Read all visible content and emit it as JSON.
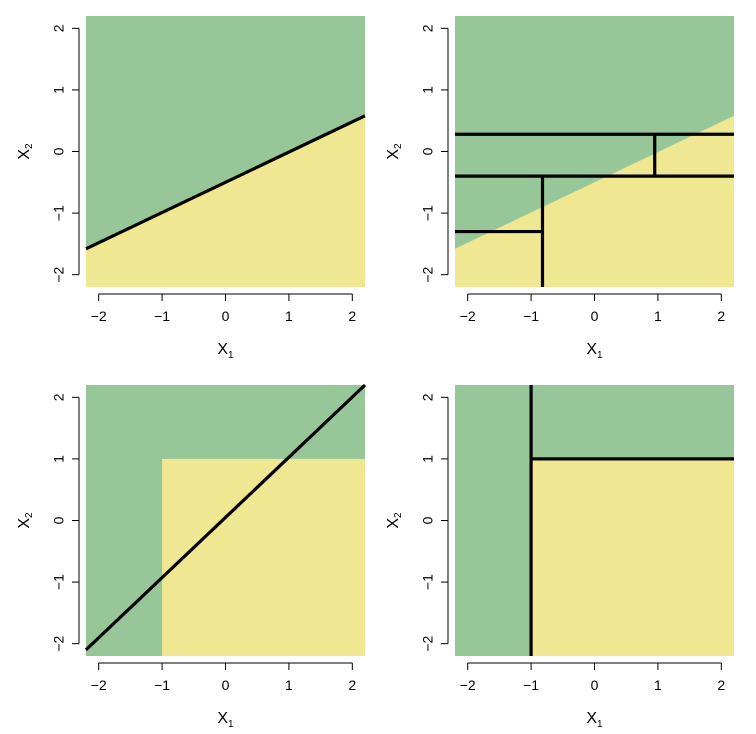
{
  "colors": {
    "green_region": "#97c699",
    "yellow_region": "#f0e793",
    "boundary": "#000000"
  },
  "chart_data": [
    {
      "type": "region",
      "xlabel": "X",
      "xlabel_sub": "1",
      "ylabel": "X",
      "ylabel_sub": "2",
      "xlim": [
        -2.2,
        2.2
      ],
      "ylim": [
        -2.2,
        2.2
      ],
      "xticks": [
        "−2",
        "−1",
        "0",
        "1",
        "2"
      ],
      "yticks": [
        "−2",
        "−1",
        "0",
        "1",
        "2"
      ],
      "background_class": "green",
      "fill_polygons": [
        {
          "class": "yellow",
          "points": [
            [
              -2.2,
              -2.2
            ],
            [
              2.2,
              -2.2
            ],
            [
              2.2,
              0.58
            ],
            [
              -2.2,
              -1.58
            ]
          ]
        }
      ],
      "boundary_segments": [
        [
          [
            -2.2,
            -1.58
          ],
          [
            2.2,
            0.58
          ]
        ]
      ]
    },
    {
      "type": "region",
      "xlabel": "X",
      "xlabel_sub": "1",
      "ylabel": "X",
      "ylabel_sub": "2",
      "xlim": [
        -2.2,
        2.2
      ],
      "ylim": [
        -2.2,
        2.2
      ],
      "xticks": [
        "−2",
        "−1",
        "0",
        "1",
        "2"
      ],
      "yticks": [
        "−2",
        "−1",
        "0",
        "1",
        "2"
      ],
      "background_class": "green",
      "fill_polygons": [
        {
          "class": "yellow",
          "points": [
            [
              -2.2,
              -2.2
            ],
            [
              2.2,
              -2.2
            ],
            [
              2.2,
              0.58
            ],
            [
              -2.2,
              -1.58
            ]
          ]
        }
      ],
      "boundary_segments": [
        [
          [
            -2.2,
            0.28
          ],
          [
            2.2,
            0.28
          ]
        ],
        [
          [
            -2.2,
            -0.4
          ],
          [
            2.2,
            -0.4
          ]
        ],
        [
          [
            0.95,
            -0.4
          ],
          [
            0.95,
            0.28
          ]
        ],
        [
          [
            -0.82,
            -2.2
          ],
          [
            -0.82,
            -0.4
          ]
        ],
        [
          [
            -2.2,
            -1.3
          ],
          [
            -0.82,
            -1.3
          ]
        ]
      ]
    },
    {
      "type": "region",
      "xlabel": "X",
      "xlabel_sub": "1",
      "ylabel": "X",
      "ylabel_sub": "2",
      "xlim": [
        -2.2,
        2.2
      ],
      "ylim": [
        -2.2,
        2.2
      ],
      "xticks": [
        "−2",
        "−1",
        "0",
        "1",
        "2"
      ],
      "yticks": [
        "−2",
        "−1",
        "0",
        "1",
        "2"
      ],
      "background_class": "green",
      "fill_polygons": [
        {
          "class": "yellow",
          "points": [
            [
              -1,
              -2.2
            ],
            [
              2.2,
              -2.2
            ],
            [
              2.2,
              1
            ],
            [
              -1,
              1
            ]
          ]
        }
      ],
      "boundary_segments": [
        [
          [
            -2.2,
            -2.1
          ],
          [
            2.2,
            2.2
          ]
        ]
      ]
    },
    {
      "type": "region",
      "xlabel": "X",
      "xlabel_sub": "1",
      "ylabel": "X",
      "ylabel_sub": "2",
      "xlim": [
        -2.2,
        2.2
      ],
      "ylim": [
        -2.2,
        2.2
      ],
      "xticks": [
        "−2",
        "−1",
        "0",
        "1",
        "2"
      ],
      "yticks": [
        "−2",
        "−1",
        "0",
        "1",
        "2"
      ],
      "background_class": "green",
      "fill_polygons": [
        {
          "class": "yellow",
          "points": [
            [
              -1,
              -2.2
            ],
            [
              2.2,
              -2.2
            ],
            [
              2.2,
              1
            ],
            [
              -1,
              1
            ]
          ]
        }
      ],
      "boundary_segments": [
        [
          [
            -1,
            -2.2
          ],
          [
            -1,
            2.2
          ]
        ],
        [
          [
            -1,
            1
          ],
          [
            2.2,
            1
          ]
        ]
      ]
    }
  ]
}
